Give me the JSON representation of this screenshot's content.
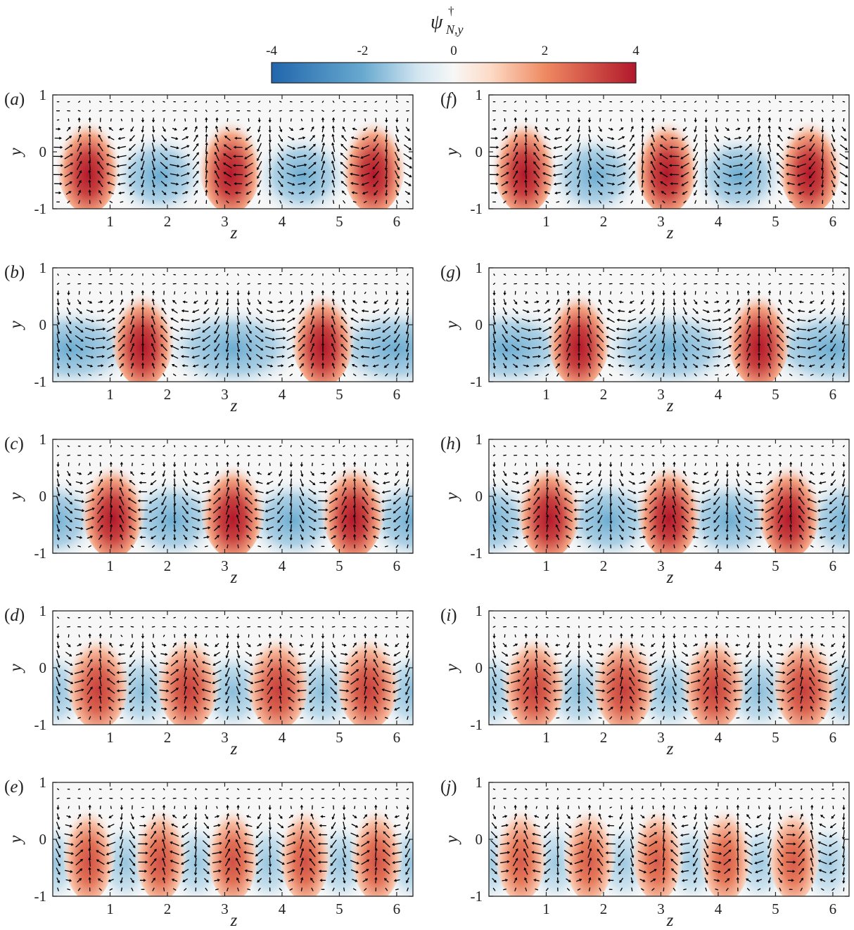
{
  "colorbar": {
    "title": "ψ",
    "title_superscript": "†",
    "title_subscript": "N,y",
    "ticks": [
      -4,
      -2,
      0,
      2,
      4
    ],
    "tick_labels": [
      "-4",
      "-2",
      "0",
      "2",
      "4"
    ],
    "range": [
      -4,
      4
    ],
    "colormap": "blue-white-red",
    "colors": {
      "neg": "#2166ac",
      "mid": "#f7f7f7",
      "pos": "#b2182b"
    }
  },
  "chart_data": [
    {
      "panel": "(a)",
      "type": "heatmap",
      "xlabel": "z",
      "ylabel": "y",
      "xlim": [
        0,
        6.2832
      ],
      "ylim": [
        -1,
        1
      ],
      "xticks": [
        1,
        2,
        3,
        4,
        5,
        6
      ],
      "yticks": [
        -1,
        0,
        1
      ],
      "field": "quiver+filled-contour",
      "red_streak_centers_z": [
        0.62,
        3.1,
        5.6
      ],
      "blue_region_centers_z": [
        1.85,
        4.35
      ],
      "peak_value": 4
    },
    {
      "panel": "(b)",
      "type": "heatmap",
      "xlabel": "z",
      "ylabel": "y",
      "xlim": [
        0,
        6.2832
      ],
      "ylim": [
        -1,
        1
      ],
      "xticks": [
        1,
        2,
        3,
        4,
        5,
        6
      ],
      "yticks": [
        -1,
        0,
        1
      ],
      "field": "quiver+filled-contour",
      "red_streak_centers_z": [
        1.57,
        4.71
      ],
      "blue_region_centers_z": [
        0.3,
        3.14,
        6.0
      ],
      "peak_value": 4
    },
    {
      "panel": "(c)",
      "type": "heatmap",
      "xlabel": "z",
      "ylabel": "y",
      "xlim": [
        0,
        6.2832
      ],
      "ylim": [
        -1,
        1
      ],
      "xticks": [
        1,
        2,
        3,
        4,
        5,
        6
      ],
      "yticks": [
        -1,
        0,
        1
      ],
      "field": "quiver+filled-contour",
      "red_streak_centers_z": [
        1.05,
        3.14,
        5.24
      ],
      "blue_region_centers_z": [
        0.0,
        2.09,
        4.19,
        6.28
      ],
      "peak_value": 4
    },
    {
      "panel": "(d)",
      "type": "heatmap",
      "xlabel": "z",
      "ylabel": "y",
      "xlim": [
        0,
        6.2832
      ],
      "ylim": [
        -1,
        1
      ],
      "xticks": [
        1,
        2,
        3,
        4,
        5,
        6
      ],
      "yticks": [
        -1,
        0,
        1
      ],
      "field": "quiver+filled-contour",
      "red_streak_centers_z": [
        0.79,
        2.36,
        3.93,
        5.5
      ],
      "blue_region_centers_z": [
        0.0,
        1.57,
        3.14,
        4.71,
        6.28
      ],
      "peak_value": 3.3
    },
    {
      "panel": "(e)",
      "type": "heatmap",
      "xlabel": "z",
      "ylabel": "y",
      "xlim": [
        0,
        6.2832
      ],
      "ylim": [
        -1,
        1
      ],
      "xticks": [
        1,
        2,
        3,
        4,
        5,
        6
      ],
      "yticks": [
        -1,
        0,
        1
      ],
      "field": "quiver+filled-contour",
      "red_streak_centers_z": [
        0.63,
        1.88,
        3.14,
        4.4,
        5.65
      ],
      "blue_region_centers_z": [
        0.0,
        1.26,
        2.51,
        3.77,
        5.03,
        6.28
      ],
      "peak_value": 3.0
    },
    {
      "panel": "(f)",
      "type": "heatmap",
      "xlabel": "z",
      "ylabel": "y",
      "xlim": [
        0,
        6.2832
      ],
      "ylim": [
        -1,
        1
      ],
      "xticks": [
        1,
        2,
        3,
        4,
        5,
        6
      ],
      "yticks": [
        -1,
        0,
        1
      ],
      "field": "quiver+filled-contour",
      "red_streak_centers_z": [
        0.62,
        3.1,
        5.6
      ],
      "blue_region_centers_z": [
        1.85,
        4.35
      ],
      "peak_value": 4
    },
    {
      "panel": "(g)",
      "type": "heatmap",
      "xlabel": "z",
      "ylabel": "y",
      "xlim": [
        0,
        6.2832
      ],
      "ylim": [
        -1,
        1
      ],
      "xticks": [
        1,
        2,
        3,
        4,
        5,
        6
      ],
      "yticks": [
        -1,
        0,
        1
      ],
      "field": "quiver+filled-contour",
      "red_streak_centers_z": [
        1.57,
        4.71
      ],
      "blue_region_centers_z": [
        0.3,
        3.14,
        6.0
      ],
      "peak_value": 4
    },
    {
      "panel": "(h)",
      "type": "heatmap",
      "xlabel": "z",
      "ylabel": "y",
      "xlim": [
        0,
        6.2832
      ],
      "ylim": [
        -1,
        1
      ],
      "xticks": [
        1,
        2,
        3,
        4,
        5,
        6
      ],
      "yticks": [
        -1,
        0,
        1
      ],
      "field": "quiver+filled-contour",
      "red_streak_centers_z": [
        1.05,
        3.14,
        5.24
      ],
      "blue_region_centers_z": [
        0.0,
        2.09,
        4.19,
        6.28
      ],
      "peak_value": 4
    },
    {
      "panel": "(i)",
      "type": "heatmap",
      "xlabel": "z",
      "ylabel": "y",
      "xlim": [
        0,
        6.2832
      ],
      "ylim": [
        -1,
        1
      ],
      "xticks": [
        1,
        2,
        3,
        4,
        5,
        6
      ],
      "yticks": [
        -1,
        0,
        1
      ],
      "field": "quiver+filled-contour",
      "red_streak_centers_z": [
        0.79,
        2.36,
        3.93,
        5.5
      ],
      "blue_region_centers_z": [
        0.0,
        1.57,
        3.14,
        4.71,
        6.28
      ],
      "peak_value": 3.3
    },
    {
      "panel": "(j)",
      "type": "heatmap",
      "xlabel": "z",
      "ylabel": "y",
      "xlim": [
        0,
        6.2832
      ],
      "ylim": [
        -1,
        1
      ],
      "xticks": [
        1,
        2,
        3,
        4,
        5,
        6
      ],
      "yticks": [
        -1,
        0,
        1
      ],
      "field": "quiver+filled-contour",
      "red_streak_centers_z": [
        0.56,
        1.75,
        2.94,
        4.13,
        5.32
      ],
      "blue_region_centers_z": [
        0.0,
        1.16,
        2.35,
        3.54,
        4.73,
        5.92
      ],
      "peak_value": 2.8
    }
  ]
}
